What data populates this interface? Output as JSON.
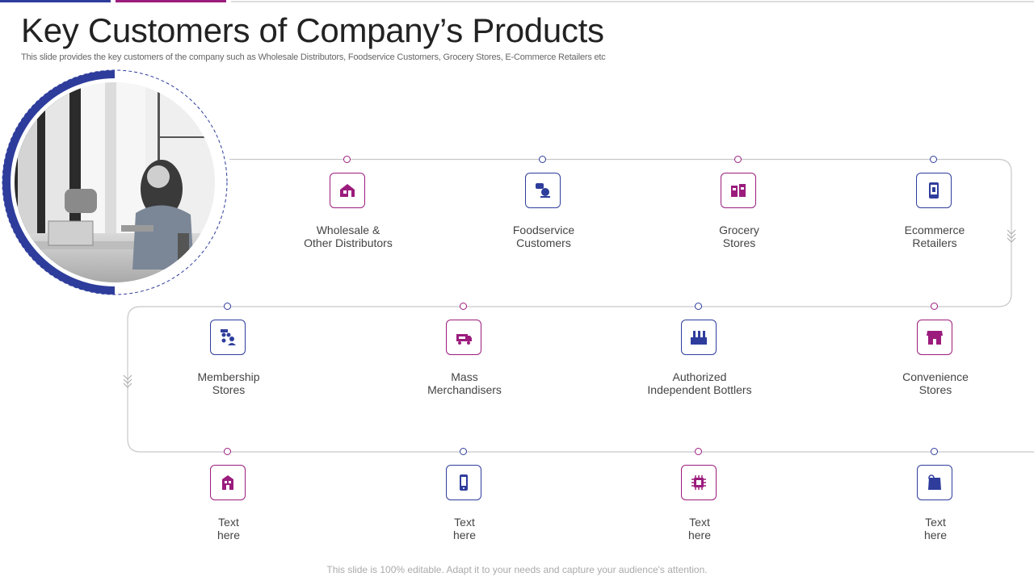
{
  "title": "Key Customers of Company’s Products",
  "subtitle": "This slide provides the key customers of the company such as Wholesale Distributors, Foodservice Customers, Grocery Stores, E-Commerce Retailers etc",
  "footer": "This slide is 100% editable. Adapt it to your needs and capture your audience's attention.",
  "colors": {
    "magenta": "#9b1c7d",
    "blue": "#2e3d9c",
    "line": "#c8c8cc",
    "chevron": "#aaaaaa"
  },
  "rows": [
    {
      "items": [
        {
          "label": "Wholesale &\nOther Distributors",
          "icon": "warehouse-icon",
          "color": "magenta"
        },
        {
          "label": "Foodservice\nCustomers",
          "icon": "food-service-icon",
          "color": "blue"
        },
        {
          "label": "Grocery\nStores",
          "icon": "grocery-store-icon",
          "color": "magenta"
        },
        {
          "label": "Ecommerce\nRetailers",
          "icon": "phone-shopping-icon",
          "color": "blue"
        }
      ]
    },
    {
      "items": [
        {
          "label": "Membership\nStores",
          "icon": "membership-group-icon",
          "color": "blue"
        },
        {
          "label": "Mass\nMerchandisers",
          "icon": "delivery-truck-icon",
          "color": "magenta"
        },
        {
          "label": "Authorized\nIndependent Bottlers",
          "icon": "bottling-plant-icon",
          "color": "blue"
        },
        {
          "label": "Convenience\nStores",
          "icon": "storefront-icon",
          "color": "magenta"
        }
      ]
    },
    {
      "items": [
        {
          "label": "Text\nhere",
          "icon": "building-icon",
          "color": "magenta"
        },
        {
          "label": "Text\nhere",
          "icon": "mobile-device-icon",
          "color": "blue"
        },
        {
          "label": "Text\nhere",
          "icon": "chip-icon",
          "color": "magenta"
        },
        {
          "label": "Text\nhere",
          "icon": "bag-icon",
          "color": "blue"
        }
      ]
    }
  ]
}
